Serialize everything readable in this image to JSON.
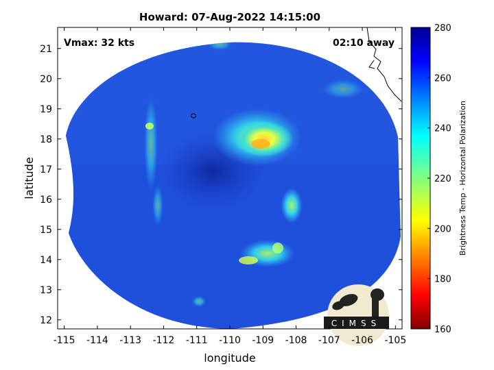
{
  "title": "Howard: 07-Aug-2022 14:15:00",
  "overlay": {
    "vmax": "Vmax: 32 kts",
    "away": "02:10 away"
  },
  "xaxis": {
    "label": "longitude",
    "range": [
      -115.2,
      -104.8
    ],
    "ticks": [
      -115,
      -114,
      -113,
      -112,
      -111,
      -110,
      -109,
      -108,
      -107,
      -106,
      -105
    ],
    "tick_labels": [
      "-115",
      "-114",
      "-113",
      "-112",
      "-111",
      "-110",
      "-109",
      "-108",
      "-107",
      "-106",
      "-105"
    ]
  },
  "yaxis": {
    "label": "latitude",
    "range": [
      11.7,
      21.7
    ],
    "ticks": [
      12,
      13,
      14,
      15,
      16,
      17,
      18,
      19,
      20,
      21
    ],
    "tick_labels": [
      "12",
      "13",
      "14",
      "15",
      "16",
      "17",
      "18",
      "19",
      "20",
      "21"
    ]
  },
  "colorbar": {
    "label": "Brightness Temp - Horizontal Polarization",
    "range": [
      160,
      280
    ],
    "ticks": [
      280,
      260,
      240,
      220,
      200,
      180,
      160
    ],
    "tick_labels": [
      "280",
      "260",
      "240",
      "220",
      "200",
      "180",
      "160"
    ],
    "colormap": "jet"
  },
  "logo": {
    "text": "CIMSS"
  },
  "colors": {
    "background_scene": "#1e50dc",
    "storm_core": "#f0ff30",
    "outer_band": "#30c8f0"
  }
}
